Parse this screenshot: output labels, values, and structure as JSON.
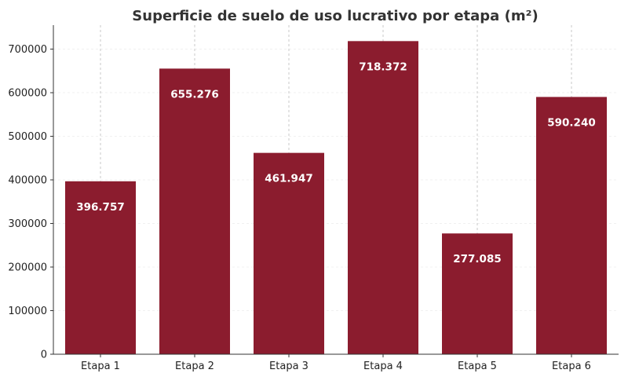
{
  "chart_data": {
    "type": "bar",
    "title": "Superficie de suelo de uso lucrativo por etapa (m²)",
    "xlabel": "",
    "ylabel": "",
    "categories": [
      "Etapa 1",
      "Etapa 2",
      "Etapa 3",
      "Etapa 4",
      "Etapa 5",
      "Etapa 6"
    ],
    "values": [
      396757,
      655276,
      461947,
      718372,
      277085,
      590240
    ],
    "value_labels": [
      "396.757",
      "655.276",
      "461.947",
      "718.372",
      "277.085",
      "590.240"
    ],
    "ylim": [
      0,
      755000
    ],
    "yticks": [
      0,
      100000,
      200000,
      300000,
      400000,
      500000,
      600000,
      700000
    ],
    "ytick_labels": [
      "0",
      "100000",
      "200000",
      "300000",
      "400000",
      "500000",
      "600000",
      "700000"
    ],
    "grid": "vertical dashed",
    "bar_color": "#8b1c2e",
    "label_color": "#ffffff"
  }
}
